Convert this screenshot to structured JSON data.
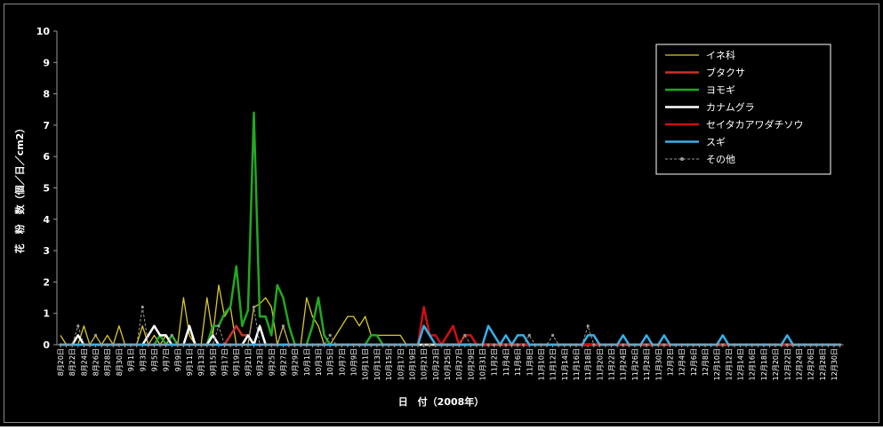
{
  "chart_data": {
    "type": "line",
    "xlabel": "日　付（2008年）",
    "ylabel": "花　粉　数（個／日／cm2）",
    "ylim": [
      0,
      10
    ],
    "yticks": [
      0,
      1,
      2,
      3,
      4,
      5,
      6,
      7,
      8,
      9,
      10
    ],
    "legend": "upper right",
    "categories": [
      "8月20日",
      null,
      "8月22日",
      null,
      "8月24日",
      null,
      "8月26日",
      null,
      "8月28日",
      null,
      "8月30日",
      null,
      "9月1日",
      null,
      "9月3日",
      null,
      "9月5日",
      null,
      "9月7日",
      null,
      "9月9日",
      null,
      "9月11日",
      null,
      "9月13日",
      null,
      "9月15日",
      null,
      "9月17日",
      null,
      "9月19日",
      null,
      "9月21日",
      null,
      "9月23日",
      null,
      "9月25日",
      null,
      "9月27日",
      null,
      "9月29日",
      null,
      "10月1日",
      null,
      "10月3日",
      null,
      "10月5日",
      null,
      "10月7日",
      null,
      "10月9日",
      null,
      "10月11日",
      null,
      "10月13日",
      null,
      "10月15日",
      null,
      "10月17日",
      null,
      "10月19日",
      null,
      "10月21日",
      null,
      "10月23日",
      null,
      "10月25日",
      null,
      "10月27日",
      null,
      "10月29日",
      null,
      "10月31日",
      null,
      "11月2日",
      null,
      "11月4日",
      null,
      "11月6日",
      null,
      "11月8日",
      null,
      "11月10日",
      null,
      "11月12日",
      null,
      "11月14日",
      null,
      "11月16日",
      null,
      "11月18日",
      null,
      "11月20日",
      null,
      "11月22日",
      null,
      "11月24日",
      null,
      "11月26日",
      null,
      "11月28日",
      null,
      "11月30日",
      null,
      "12月2日",
      null,
      "12月4日",
      null,
      "12月6日",
      null,
      "12月8日",
      null,
      "12月10日",
      null,
      "12月12日",
      null,
      "12月14日",
      null,
      "12月16日",
      null,
      "12月18日",
      null,
      "12月20日",
      null,
      "12月22日",
      null,
      "12月24日",
      null,
      "12月26日",
      null,
      "12月28日",
      null,
      "12月30日",
      null
    ],
    "series": [
      {
        "name": "イネ科",
        "color": "#d8c82c",
        "linewidth": 1.3,
        "values": [
          0.3,
          0,
          0,
          0,
          0.6,
          0,
          0.3,
          0,
          0.3,
          0,
          0.6,
          0,
          0,
          0,
          0.6,
          0,
          0.3,
          0,
          0.3,
          0,
          0,
          1.5,
          0.3,
          0,
          0,
          1.5,
          0.3,
          1.9,
          0.9,
          1.2,
          0,
          0,
          0,
          1.2,
          1.3,
          1.5,
          1.2,
          0,
          0.6,
          0,
          0,
          0,
          1.5,
          0.9,
          0.6,
          0,
          0,
          0.3,
          0.6,
          0.9,
          0.9,
          0.6,
          0.9,
          0.3,
          0.3,
          0.3,
          0.3,
          0.3,
          0.3,
          0,
          0,
          0,
          0,
          0,
          0,
          0,
          0,
          0,
          0,
          0,
          0,
          0,
          0,
          0,
          0,
          0,
          0,
          0,
          0,
          0,
          0,
          0,
          0,
          0,
          0,
          0,
          0,
          0,
          0,
          0,
          0,
          0,
          0,
          0,
          0,
          0,
          0,
          0,
          0,
          0,
          0,
          0,
          0,
          0,
          0,
          0,
          0,
          0,
          0,
          0,
          0,
          0,
          0,
          0,
          0,
          0,
          0,
          0,
          0,
          0,
          0,
          0,
          0,
          0,
          0,
          0,
          0,
          0,
          0,
          0,
          0,
          0,
          0,
          0
        ]
      },
      {
        "name": "ブタクサ",
        "color": "#c83228",
        "linewidth": 2.5,
        "values": [
          0,
          0,
          0,
          0,
          0,
          0,
          0,
          0,
          0,
          0,
          0,
          0,
          0,
          0,
          0,
          0,
          0,
          0,
          0,
          0,
          0,
          0,
          0,
          0,
          0,
          0,
          0,
          0,
          0,
          0.3,
          0.6,
          0.3,
          0.3,
          0,
          0,
          0,
          0,
          0,
          0,
          0,
          0,
          0,
          0,
          0,
          0,
          0,
          0,
          0,
          0,
          0,
          0,
          0,
          0,
          0,
          0,
          0,
          0,
          0,
          0,
          0,
          0,
          0,
          0,
          0,
          0,
          0,
          0,
          0,
          0,
          0,
          0,
          0,
          0,
          0,
          0,
          0,
          0,
          0,
          0,
          0,
          0,
          0,
          0,
          0,
          0,
          0,
          0,
          0,
          0,
          0,
          0,
          0,
          0,
          0,
          0,
          0,
          0,
          0,
          0,
          0,
          0,
          0,
          0,
          0,
          0,
          0,
          0,
          0,
          0,
          0,
          0,
          0,
          0,
          0,
          0,
          0,
          0,
          0,
          0,
          0,
          0,
          0,
          0,
          0,
          0,
          0,
          0,
          0,
          0,
          0,
          0,
          0,
          0,
          0
        ]
      },
      {
        "name": "ヨモギ",
        "color": "#22a822",
        "linewidth": 2.5,
        "values": [
          0,
          0,
          0,
          0,
          0,
          0,
          0,
          0,
          0,
          0,
          0,
          0,
          0,
          0,
          0,
          0,
          0,
          0.3,
          0,
          0.3,
          0,
          0,
          0,
          0,
          0,
          0,
          0.6,
          0.6,
          1.0,
          1.2,
          2.5,
          0.6,
          1.1,
          7.4,
          0.9,
          0.9,
          0.3,
          1.9,
          1.5,
          0.6,
          0,
          0,
          0,
          0.6,
          1.5,
          0.3,
          0,
          0,
          0,
          0,
          0,
          0,
          0,
          0.3,
          0.3,
          0,
          0,
          0,
          0,
          0,
          0,
          0,
          0,
          0,
          0,
          0,
          0,
          0,
          0,
          0,
          0,
          0,
          0,
          0,
          0,
          0,
          0,
          0,
          0,
          0,
          0,
          0,
          0,
          0,
          0,
          0,
          0,
          0,
          0,
          0,
          0,
          0,
          0,
          0,
          0,
          0,
          0,
          0,
          0,
          0,
          0,
          0,
          0,
          0,
          0,
          0,
          0,
          0,
          0,
          0,
          0,
          0,
          0,
          0,
          0,
          0,
          0,
          0,
          0,
          0,
          0,
          0,
          0,
          0,
          0,
          0,
          0,
          0,
          0,
          0,
          0,
          0,
          0,
          0
        ]
      },
      {
        "name": "カナムグラ",
        "color": "#ffffff",
        "linewidth": 2.5,
        "values": [
          0,
          0,
          0,
          0.3,
          0,
          0,
          0,
          0,
          0,
          0,
          0,
          0,
          0,
          0,
          0,
          0.3,
          0.6,
          0.3,
          0.3,
          0,
          0,
          0,
          0.6,
          0,
          0,
          0,
          0.3,
          0,
          0,
          0,
          0,
          0,
          0.3,
          0,
          0.6,
          0,
          0,
          0,
          0,
          0,
          0,
          0,
          0,
          0,
          0,
          0,
          0,
          0,
          0,
          0,
          0,
          0,
          0,
          0,
          0,
          0,
          0,
          0,
          0,
          0,
          0,
          0,
          0,
          0,
          0,
          0,
          0,
          0,
          0,
          0,
          0,
          0,
          0,
          0,
          0,
          0,
          0,
          0,
          0,
          0,
          0,
          0,
          0,
          0,
          0,
          0,
          0,
          0,
          0,
          0,
          0,
          0,
          0,
          0,
          0,
          0,
          0,
          0,
          0,
          0,
          0,
          0,
          0,
          0,
          0,
          0,
          0,
          0,
          0,
          0,
          0,
          0,
          0,
          0,
          0,
          0,
          0,
          0,
          0,
          0,
          0,
          0,
          0,
          0,
          0,
          0,
          0,
          0,
          0,
          0,
          0,
          0,
          0,
          0
        ]
      },
      {
        "name": "セイタカアワダチソウ",
        "color": "#d01010",
        "linewidth": 2.5,
        "values": [
          0,
          0,
          0,
          0,
          0,
          0,
          0,
          0,
          0,
          0,
          0,
          0,
          0,
          0,
          0,
          0,
          0,
          0,
          0,
          0,
          0,
          0,
          0,
          0,
          0,
          0,
          0,
          0,
          0,
          0,
          0,
          0,
          0,
          0,
          0,
          0,
          0,
          0,
          0,
          0,
          0,
          0,
          0,
          0,
          0,
          0,
          0,
          0,
          0,
          0,
          0,
          0,
          0,
          0,
          0,
          0,
          0,
          0,
          0,
          0,
          0,
          0,
          1.2,
          0.3,
          0.3,
          0,
          0.3,
          0.6,
          0,
          0.3,
          0.3,
          0,
          0,
          0,
          0,
          0,
          0,
          0,
          0,
          0,
          0,
          0,
          0,
          0,
          0,
          0,
          0,
          0,
          0,
          0,
          0,
          0,
          0,
          0,
          0,
          0,
          0,
          0,
          0,
          0,
          0,
          0,
          0,
          0,
          0,
          0,
          0,
          0,
          0,
          0,
          0,
          0,
          0,
          0,
          0,
          0,
          0,
          0,
          0,
          0,
          0,
          0,
          0,
          0,
          0,
          0,
          0,
          0,
          0,
          0,
          0,
          0,
          0,
          0
        ]
      },
      {
        "name": "スギ",
        "color": "#38b0e8",
        "linewidth": 2.5,
        "values": [
          0,
          0,
          0,
          0,
          0,
          0,
          0,
          0,
          0,
          0,
          0,
          0,
          0,
          0,
          0,
          0,
          0,
          0,
          0,
          0,
          0,
          0,
          0,
          0,
          0,
          0,
          0,
          0,
          0,
          0,
          0,
          0,
          0,
          0,
          0,
          0,
          0,
          0,
          0,
          0,
          0,
          0,
          0,
          0,
          0,
          0,
          0,
          0,
          0,
          0,
          0,
          0,
          0,
          0,
          0,
          0,
          0,
          0,
          0,
          0,
          0,
          0,
          0.6,
          0.3,
          0,
          0,
          0,
          0,
          0,
          0,
          0,
          0,
          0,
          0.6,
          0.3,
          0,
          0.3,
          0,
          0.3,
          0.3,
          0,
          0,
          0,
          0,
          0,
          0,
          0,
          0,
          0,
          0,
          0.3,
          0.3,
          0,
          0,
          0,
          0,
          0.3,
          0,
          0,
          0,
          0.3,
          0,
          0,
          0.3,
          0,
          0,
          0,
          0,
          0,
          0,
          0,
          0,
          0,
          0.3,
          0,
          0,
          0,
          0,
          0,
          0,
          0,
          0,
          0,
          0,
          0.3,
          0,
          0,
          0,
          0,
          0,
          0,
          0,
          0,
          0
        ]
      },
      {
        "name": "その他",
        "color": "#9a9a9a",
        "linewidth": 1,
        "dashed": true,
        "marker": true,
        "values": [
          0,
          0,
          0,
          0.6,
          0,
          0,
          0.3,
          0,
          0,
          0,
          0,
          0,
          0,
          0,
          1.2,
          0,
          0,
          0,
          0,
          0.3,
          0,
          0,
          0,
          0,
          0,
          0,
          0,
          0.6,
          0,
          0,
          0,
          0,
          0,
          1.2,
          0,
          0,
          0,
          0,
          0.6,
          0,
          0,
          0,
          0,
          0,
          0,
          0,
          0.3,
          0,
          0,
          0,
          0,
          0,
          0,
          0,
          0,
          0,
          0,
          0,
          0,
          0,
          0,
          0,
          0,
          0,
          0,
          0,
          0,
          0,
          0,
          0.3,
          0,
          0,
          0,
          0,
          0,
          0,
          0,
          0,
          0,
          0,
          0.3,
          0,
          0,
          0,
          0.3,
          0,
          0,
          0,
          0,
          0,
          0.6,
          0,
          0,
          0,
          0,
          0,
          0,
          0,
          0,
          0,
          0,
          0,
          0,
          0,
          0,
          0,
          0,
          0,
          0,
          0,
          0,
          0,
          0,
          0,
          0,
          0,
          0,
          0,
          0,
          0,
          0,
          0,
          0,
          0,
          0,
          0,
          0,
          0,
          0,
          0,
          0,
          0,
          0,
          0
        ]
      }
    ]
  }
}
